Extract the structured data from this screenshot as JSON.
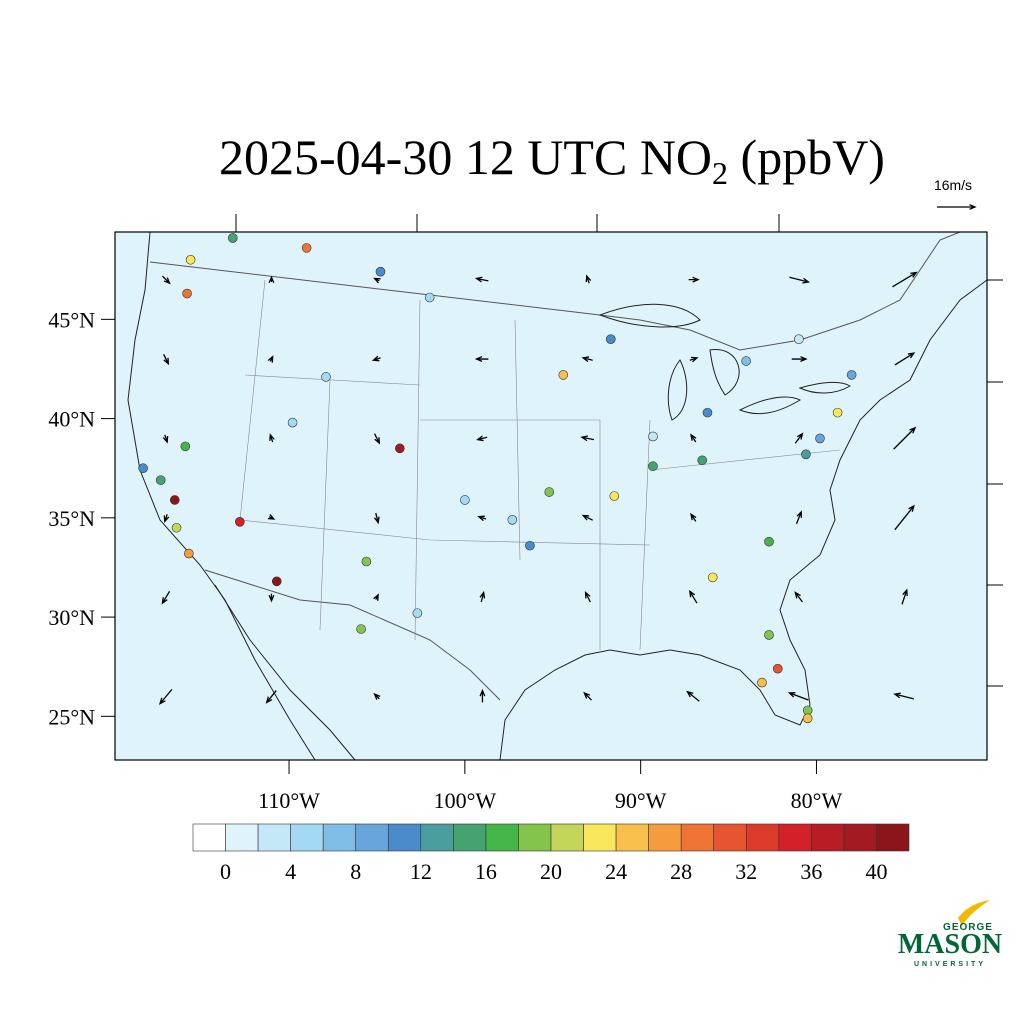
{
  "title": {
    "main": "2025-04-30 12 UTC NO",
    "sub": "2",
    "end": " (ppbV)"
  },
  "vector_reference": {
    "value": 16,
    "label": "16m/s"
  },
  "map": {
    "xlim": [
      -119.9,
      -70.3
    ],
    "ylim": [
      22.8,
      49.4
    ],
    "lat_ticks": [
      {
        "value": 45,
        "label": "45°N"
      },
      {
        "value": 40,
        "label": "40°N"
      },
      {
        "value": 35,
        "label": "35°N"
      },
      {
        "value": 30,
        "label": "30°N"
      },
      {
        "value": 25,
        "label": "25°N"
      }
    ],
    "lon_ticks": [
      {
        "value": -110,
        "label": "110°W"
      },
      {
        "value": -100,
        "label": "100°W"
      },
      {
        "value": -90,
        "label": "90°W"
      },
      {
        "value": -80,
        "label": "80°W"
      }
    ],
    "wind": {
      "lon": [
        -117,
        -111,
        -105,
        -99,
        -93,
        -87,
        -81,
        -75
      ],
      "lat": [
        47,
        43,
        39,
        35,
        31,
        26
      ],
      "u": [
        [
          3,
          0,
          -2,
          -5,
          -1,
          4,
          8,
          10
        ],
        [
          2,
          1,
          -3,
          -5,
          -4,
          3,
          6,
          8
        ],
        [
          1,
          -1,
          2,
          -4,
          -5,
          -2,
          3,
          9
        ],
        [
          -1,
          2,
          1,
          -3,
          -4,
          -2,
          2,
          8
        ],
        [
          -3,
          0,
          1,
          1,
          -2,
          -3,
          -3,
          2
        ],
        [
          -5,
          -4,
          -2,
          0,
          -3,
          -5,
          -8,
          -8
        ]
      ],
      "v": [
        [
          -3,
          2,
          1,
          1,
          3,
          0,
          -2,
          6
        ],
        [
          -4,
          2,
          -1,
          0,
          1,
          1,
          0,
          5
        ],
        [
          -3,
          3,
          -4,
          -1,
          1,
          3,
          4,
          9
        ],
        [
          -3,
          -1,
          -4,
          1,
          2,
          3,
          5,
          10
        ],
        [
          -5,
          -3,
          2,
          4,
          4,
          5,
          4,
          6
        ],
        [
          -6,
          -5,
          2,
          5,
          3,
          4,
          3,
          2
        ]
      ]
    },
    "stations": [
      {
        "lon": -103.7,
        "lat": 38.5,
        "value": 38
      },
      {
        "lon": -110.7,
        "lat": 31.8,
        "value": 42
      },
      {
        "lon": -112.8,
        "lat": 34.8,
        "value": 34
      },
      {
        "lon": -116.5,
        "lat": 35.9,
        "value": 40
      },
      {
        "lon": -115.7,
        "lat": 33.2,
        "value": 26
      },
      {
        "lon": -82.2,
        "lat": 27.4,
        "value": 30
      },
      {
        "lon": -83.1,
        "lat": 26.7,
        "value": 25
      },
      {
        "lon": -91.5,
        "lat": 36.1,
        "value": 23
      },
      {
        "lon": -94.4,
        "lat": 42.2,
        "value": 25
      },
      {
        "lon": -78.8,
        "lat": 40.3,
        "value": 23
      },
      {
        "lon": -109.0,
        "lat": 48.6,
        "value": 28
      },
      {
        "lon": -115.8,
        "lat": 46.3,
        "value": 28
      },
      {
        "lon": -115.6,
        "lat": 48.0,
        "value": 22
      },
      {
        "lon": -82.7,
        "lat": 33.8,
        "value": 17
      },
      {
        "lon": -82.7,
        "lat": 29.1,
        "value": 19
      },
      {
        "lon": -85.9,
        "lat": 32.0,
        "value": 22
      },
      {
        "lon": -95.2,
        "lat": 36.3,
        "value": 19
      },
      {
        "lon": -80.5,
        "lat": 25.3,
        "value": 19
      },
      {
        "lon": -80.5,
        "lat": 24.9,
        "value": 24
      },
      {
        "lon": -105.9,
        "lat": 29.4,
        "value": 19
      },
      {
        "lon": -116.4,
        "lat": 34.5,
        "value": 21
      },
      {
        "lon": -115.9,
        "lat": 38.6,
        "value": 16
      },
      {
        "lon": -105.6,
        "lat": 32.8,
        "value": 18
      },
      {
        "lon": -91.7,
        "lat": 44.0,
        "value": 11
      },
      {
        "lon": -104.8,
        "lat": 47.4,
        "value": 11
      },
      {
        "lon": -89.3,
        "lat": 37.6,
        "value": 15
      },
      {
        "lon": -113.2,
        "lat": 49.1,
        "value": 14
      },
      {
        "lon": -102.0,
        "lat": 46.1,
        "value": 5
      },
      {
        "lon": -107.9,
        "lat": 42.1,
        "value": 5
      },
      {
        "lon": -89.3,
        "lat": 39.1,
        "value": 3
      },
      {
        "lon": -100.0,
        "lat": 35.9,
        "value": 4
      },
      {
        "lon": -97.3,
        "lat": 34.9,
        "value": 5
      },
      {
        "lon": -102.7,
        "lat": 30.2,
        "value": 4
      },
      {
        "lon": -84.0,
        "lat": 42.9,
        "value": 7
      },
      {
        "lon": -81.0,
        "lat": 44.0,
        "value": 3
      },
      {
        "lon": -79.8,
        "lat": 39.0,
        "value": 9
      },
      {
        "lon": -86.2,
        "lat": 40.3,
        "value": 11
      },
      {
        "lon": -80.6,
        "lat": 38.2,
        "value": 12
      },
      {
        "lon": -96.3,
        "lat": 33.6,
        "value": 11
      },
      {
        "lon": -118.3,
        "lat": 37.5,
        "value": 10
      },
      {
        "lon": -117.3,
        "lat": 36.9,
        "value": 14
      },
      {
        "lon": -109.8,
        "lat": 39.8,
        "value": 5
      },
      {
        "lon": -86.5,
        "lat": 37.9,
        "value": 15
      },
      {
        "lon": -78.0,
        "lat": 42.2,
        "value": 9
      }
    ]
  },
  "colorbar": {
    "levels": [
      0,
      2,
      4,
      6,
      8,
      10,
      12,
      14,
      16,
      18,
      20,
      22,
      24,
      26,
      28,
      30,
      32,
      34,
      36,
      38,
      40
    ],
    "ticks": [
      0,
      4,
      8,
      12,
      16,
      20,
      24,
      28,
      32,
      36,
      40
    ],
    "colors": [
      "#ffffff",
      "#dff3fb",
      "#c4e8f7",
      "#a3d9f3",
      "#80bde6",
      "#67a5dc",
      "#4a8ccb",
      "#4a9e9e",
      "#45a371",
      "#44b549",
      "#83c44c",
      "#c4d65a",
      "#f8e75a",
      "#f8c04a",
      "#f59c3e",
      "#ef7332",
      "#e65430",
      "#dc3a2b",
      "#d42028",
      "#b81d25",
      "#a31b22",
      "#8b1518"
    ]
  },
  "logo": {
    "top": "GEORGE",
    "main": "MASON",
    "bottom": "UNIVERSITY"
  }
}
